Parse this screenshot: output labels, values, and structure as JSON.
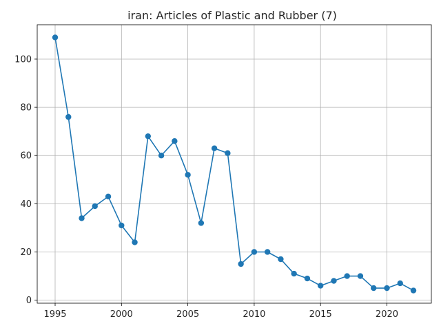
{
  "chart_data": {
    "type": "line",
    "title": "iran: Articles of Plastic and Rubber (7)",
    "xlabel": "",
    "ylabel": "",
    "x": [
      1995,
      1996,
      1997,
      1998,
      1999,
      2000,
      2001,
      2002,
      2003,
      2004,
      2005,
      2006,
      2007,
      2008,
      2009,
      2010,
      2011,
      2012,
      2013,
      2014,
      2015,
      2016,
      2017,
      2018,
      2019,
      2020,
      2021,
      2022
    ],
    "series": [
      {
        "values": [
          109,
          76,
          34,
          39,
          43,
          31,
          24,
          68,
          60,
          66,
          52,
          32,
          63,
          61,
          15,
          20,
          20,
          17,
          11,
          9,
          6,
          8,
          10,
          10,
          5,
          5,
          7,
          4
        ],
        "color": "#1f77b4",
        "marker": "circle"
      }
    ],
    "xlim": [
      1993.65,
      2023.35
    ],
    "ylim": [
      -1.25,
      114.25
    ],
    "xticks": [
      1995,
      2000,
      2005,
      2010,
      2015,
      2020
    ],
    "yticks": [
      0,
      20,
      40,
      60,
      80,
      100
    ],
    "grid": true,
    "legend": "none"
  }
}
